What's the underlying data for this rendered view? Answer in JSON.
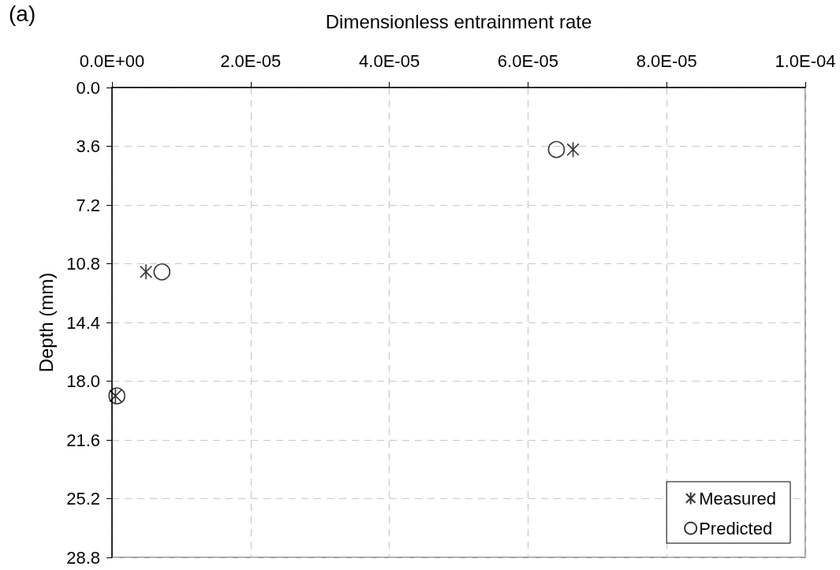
{
  "chart_data": {
    "type": "scatter",
    "annotations": [
      "(a)"
    ],
    "xlabel": "Dimensionless entrainment rate",
    "ylabel": "Depth (mm)",
    "xlim": [
      0,
      0.0001
    ],
    "xticks": [
      {
        "value": 0,
        "label": "0.0E+00"
      },
      {
        "value": 2e-05,
        "label": "2.0E-05"
      },
      {
        "value": 4e-05,
        "label": "4.0E-05"
      },
      {
        "value": 6e-05,
        "label": "6.0E-05"
      },
      {
        "value": 8e-05,
        "label": "8.0E-05"
      },
      {
        "value": 0.0001,
        "label": "1.0E-04"
      }
    ],
    "ylim": [
      28.8,
      0
    ],
    "yticks": [
      {
        "value": 0,
        "label": "0.0"
      },
      3.6,
      7.2,
      10.8,
      14.4,
      {
        "value": 18,
        "label": "18.0"
      },
      21.6,
      25.2,
      28.8
    ],
    "series": [
      {
        "name": "Measured",
        "color": "#000000",
        "marker": "cross",
        "x": [
          6.65e-05,
          4.9e-06,
          5e-07
        ],
        "values": [
          3.8,
          11.3,
          18.9
        ]
      },
      {
        "name": "Predicted",
        "color": "#000000",
        "marker": "circle",
        "x": [
          6.41e-05,
          7.2e-06,
          7e-07
        ],
        "values": [
          3.8,
          11.3,
          18.9
        ]
      }
    ],
    "grid": true,
    "legend": "bottom right"
  }
}
